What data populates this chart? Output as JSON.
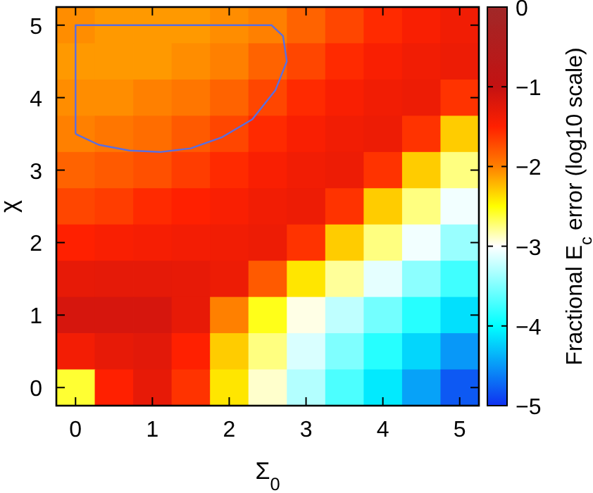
{
  "chart_data": {
    "type": "heatmap",
    "xlabel": "Σ$_{0}$",
    "ylabel": "χ",
    "clabel": "Fractional E$_{c}$ error (log10 scale)",
    "categories": [
      "0",
      null,
      "1",
      null,
      "2",
      null,
      "3",
      null,
      "4",
      null,
      "5"
    ],
    "y_categories": [
      "5",
      null,
      "4",
      null,
      "3",
      null,
      "2",
      null,
      "1",
      null,
      "0"
    ],
    "clim": [
      -5,
      0
    ],
    "cticks": [
      0,
      {
        "value": -1,
        "label": "−1"
      },
      {
        "value": -2,
        "label": "−2"
      },
      {
        "value": -3,
        "label": "−3"
      },
      {
        "value": -4,
        "label": "−4"
      },
      {
        "value": -5,
        "label": "−5"
      }
    ],
    "cells": [
      [
        -2.05,
        -2.1,
        -2.1,
        -2.1,
        -2.05,
        -2.0,
        -1.85,
        -1.7,
        -1.55,
        -1.45,
        -1.38
      ],
      [
        -2.1,
        -2.1,
        -2.1,
        -2.05,
        -2.0,
        -1.85,
        -1.7,
        -1.55,
        -1.45,
        -1.38,
        -1.35
      ],
      [
        -2.05,
        -2.05,
        -2.0,
        -1.95,
        -1.85,
        -1.7,
        -1.55,
        -1.45,
        -1.38,
        -1.35,
        -1.6
      ],
      [
        -2.0,
        -1.95,
        -1.9,
        -1.8,
        -1.7,
        -1.55,
        -1.45,
        -1.38,
        -1.35,
        -1.6,
        -2.3
      ],
      [
        -1.85,
        -1.8,
        -1.75,
        -1.65,
        -1.55,
        -1.45,
        -1.38,
        -1.35,
        -1.6,
        -2.3,
        -2.75
      ],
      [
        -1.7,
        -1.65,
        -1.55,
        -1.5,
        -1.45,
        -1.38,
        -1.35,
        -1.6,
        -2.3,
        -2.75,
        -3.05
      ],
      [
        -1.5,
        -1.45,
        -1.42,
        -1.4,
        -1.38,
        -1.35,
        -1.6,
        -2.3,
        -2.75,
        -3.05,
        -3.4
      ],
      [
        -1.3,
        -1.28,
        -1.28,
        -1.3,
        -1.35,
        -1.8,
        -2.4,
        -2.8,
        -3.1,
        -3.45,
        -3.75
      ],
      [
        -1.15,
        -1.15,
        -1.15,
        -1.3,
        -2.0,
        -2.55,
        -2.95,
        -3.25,
        -3.55,
        -3.85,
        -4.15
      ],
      [
        -1.4,
        -1.3,
        -1.25,
        -1.5,
        -2.3,
        -2.75,
        -3.15,
        -3.5,
        -3.85,
        -4.2,
        -4.5
      ],
      [
        -2.6,
        -1.5,
        -1.3,
        -1.6,
        -2.4,
        -2.9,
        -3.3,
        -3.7,
        -4.1,
        -4.45,
        -4.8
      ]
    ]
  }
}
